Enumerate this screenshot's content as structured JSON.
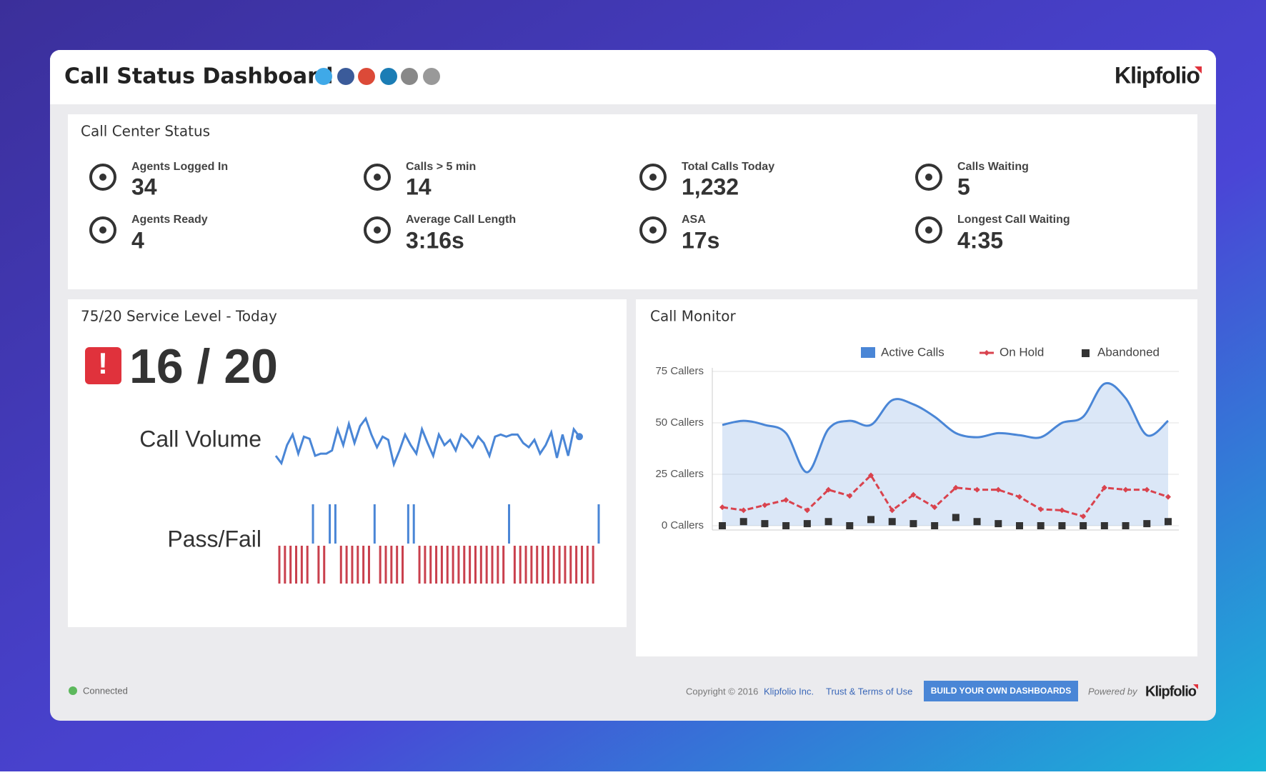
{
  "header": {
    "title": "Call Status Dashboard",
    "logo": "Klipfolio"
  },
  "status": {
    "title": "Call Center Status",
    "tiles": [
      {
        "label": "Agents Logged In",
        "value": 34
      },
      {
        "label": "Calls > 5 min",
        "value": 14
      },
      {
        "label": "Total Calls Today",
        "value": "1,232"
      },
      {
        "label": "Calls Waiting",
        "value": 5
      },
      {
        "label": "Agents Ready",
        "value": 4
      },
      {
        "label": "Average Call Length",
        "value": "3:16s"
      },
      {
        "label": "ASA",
        "value": "17s"
      },
      {
        "label": "Longest Call Waiting",
        "value": "4:35"
      }
    ]
  },
  "service_level": {
    "title": "75/20 Service Level - Today",
    "score": "16 / 20"
  },
  "monitor_title": "Call Monitor",
  "chart_data": [
    {
      "type": "line",
      "label": "Call Volume",
      "color": "#4a86d6",
      "values": [
        10,
        3,
        20,
        30,
        12,
        28,
        26,
        10,
        12,
        12,
        15,
        35,
        20,
        40,
        22,
        38,
        45,
        30,
        18,
        28,
        25,
        2,
        15,
        30,
        20,
        12,
        35,
        22,
        10,
        30,
        20,
        25,
        15,
        30,
        25,
        18,
        28,
        22,
        10,
        28,
        30,
        28,
        30,
        30,
        22,
        18,
        25,
        12,
        20,
        32,
        8,
        30,
        10,
        35,
        28
      ]
    },
    {
      "type": "bar",
      "label": "Pass/Fail",
      "pass_color": "#4a86d6",
      "fail_color": "#c9404d",
      "values": [
        0,
        0,
        0,
        0,
        0,
        0,
        1,
        0,
        0,
        1,
        1,
        0,
        0,
        0,
        0,
        0,
        0,
        1,
        0,
        0,
        0,
        0,
        0,
        1,
        1,
        0,
        0,
        0,
        0,
        0,
        0,
        0,
        0,
        0,
        0,
        0,
        0,
        0,
        0,
        0,
        0,
        1,
        0,
        0,
        0,
        0,
        0,
        0,
        0,
        0,
        0,
        0,
        0,
        0,
        0,
        0,
        0,
        1
      ]
    },
    {
      "type": "line",
      "categories": [
        null,
        null,
        null,
        null,
        null,
        null,
        null,
        null,
        null,
        null,
        null,
        null,
        null,
        null,
        null,
        null,
        null,
        null,
        null,
        null,
        null,
        null
      ],
      "ylim": [
        0,
        75
      ],
      "yticks": [
        {
          "value": 0,
          "label": "0 Callers"
        },
        {
          "value": 25,
          "label": "25 Callers"
        },
        {
          "value": 50,
          "label": "50 Callers"
        },
        {
          "value": 75,
          "label": "75 Callers"
        }
      ],
      "grid": true,
      "series": [
        {
          "name": "Active Calls",
          "color": "#4a86d6",
          "kind": "area",
          "values": [
            49,
            51,
            49,
            45,
            26,
            47,
            51,
            49,
            61,
            59,
            53,
            45,
            43,
            45,
            44,
            43,
            50,
            53,
            69,
            62,
            44,
            51
          ]
        },
        {
          "name": "On Hold",
          "color": "#d9434e",
          "kind": "line",
          "values": [
            9,
            7.5,
            10,
            12.5,
            7.5,
            17.5,
            14.5,
            24.5,
            7.5,
            15,
            9,
            18.5,
            17.5,
            17.5,
            14,
            8,
            7.5,
            4.5,
            18.5,
            17.5,
            17.5,
            14
          ]
        },
        {
          "name": "Abandoned",
          "color": "#333333",
          "kind": "points",
          "values": [
            0,
            2,
            1,
            0,
            1,
            2,
            0,
            3,
            2,
            1,
            0,
            4,
            2,
            1,
            0,
            0,
            0,
            0,
            0,
            0,
            1,
            2
          ]
        }
      ]
    }
  ],
  "footer": {
    "status": "Connected",
    "copyright": "Copyright © 2016",
    "company": "Klipfolio Inc.",
    "terms": "Trust & Terms of Use",
    "button": "BUILD YOUR OWN DASHBOARDS",
    "powered_by": "Powered by",
    "logo": "Klipfolio"
  }
}
